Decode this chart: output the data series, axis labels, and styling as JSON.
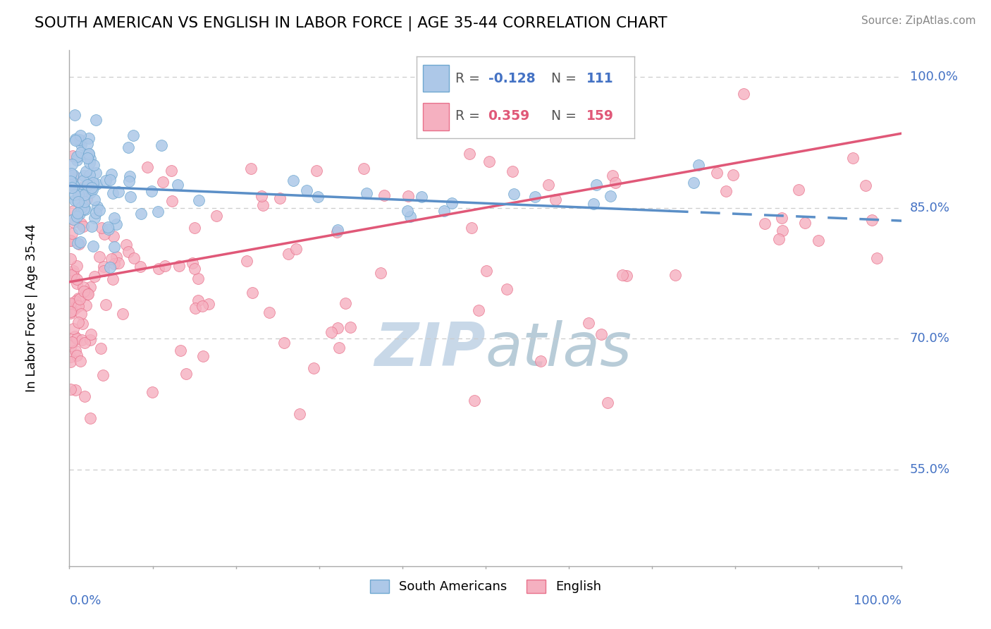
{
  "title": "SOUTH AMERICAN VS ENGLISH IN LABOR FORCE | AGE 35-44 CORRELATION CHART",
  "source_text": "Source: ZipAtlas.com",
  "ylabel": "In Labor Force | Age 35-44",
  "blue_R": -0.128,
  "blue_N": 111,
  "pink_R": 0.359,
  "pink_N": 159,
  "blue_color": "#adc8e8",
  "pink_color": "#f5b0c0",
  "blue_edge_color": "#6fa8d0",
  "pink_edge_color": "#e8708a",
  "blue_line_color": "#5b8fc7",
  "pink_line_color": "#e05878",
  "watermark_color": "#c8d8e8",
  "grid_color": "#cccccc",
  "axis_color": "#aaaaaa",
  "label_color": "#4472c4",
  "legend_box_color": "#f0f0f0",
  "ytick_labels": [
    "55.0%",
    "70.0%",
    "85.0%",
    "100.0%"
  ],
  "ytick_values": [
    0.55,
    0.7,
    0.85,
    1.0
  ],
  "blue_trend_x0": 0.0,
  "blue_trend_y0": 0.875,
  "blue_trend_x1": 1.0,
  "blue_trend_y1": 0.835,
  "pink_trend_x0": 0.0,
  "pink_trend_y0": 0.765,
  "pink_trend_x1": 1.0,
  "pink_trend_y1": 0.935,
  "ymin": 0.44,
  "ymax": 1.03,
  "xmin": 0.0,
  "xmax": 1.0
}
